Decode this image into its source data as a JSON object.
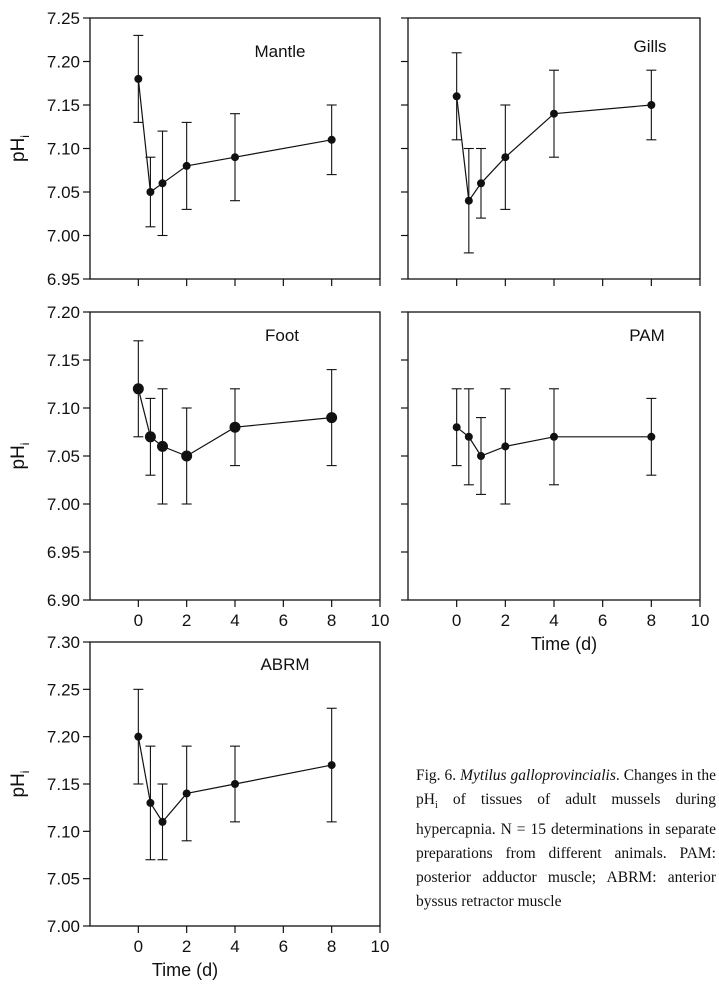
{
  "chart_data": [
    {
      "type": "errorbar-line",
      "title": "Mantle",
      "ylabel": "pH",
      "ylabel_subscript": "i",
      "x": [
        0,
        0.5,
        1,
        2,
        4,
        8
      ],
      "values": [
        7.18,
        7.05,
        7.06,
        7.08,
        7.09,
        7.11
      ],
      "errors": [
        0.05,
        0.04,
        0.06,
        0.05,
        0.05,
        0.04
      ],
      "color": "#111111",
      "xlim": [
        -2,
        10
      ],
      "xticks": [
        0,
        2,
        4,
        6,
        8,
        10
      ],
      "show_xtick_labels": false,
      "ylim": [
        6.95,
        7.25
      ],
      "yticks": [
        6.95,
        {
          "value": 7,
          "label": "7.00"
        },
        7.05,
        {
          "value": 7.1,
          "label": "7.10"
        },
        7.15,
        {
          "value": 7.2,
          "label": "7.20"
        },
        7.25
      ],
      "show_ytick_labels": true
    },
    {
      "type": "errorbar-line",
      "title": "Gills",
      "x": [
        0,
        0.5,
        1,
        2,
        4,
        8
      ],
      "values": [
        7.16,
        7.04,
        7.06,
        7.09,
        7.14,
        7.15
      ],
      "errors": [
        0.05,
        0.06,
        0.04,
        0.06,
        0.05,
        0.04
      ],
      "color": "#111111",
      "xlim": [
        -2,
        10
      ],
      "xticks": [
        0,
        2,
        4,
        6,
        8,
        10
      ],
      "show_xtick_labels": false,
      "ylim": [
        6.95,
        7.25
      ],
      "yticks": [
        6.95,
        7,
        7.05,
        7.1,
        7.15,
        7.2,
        7.25
      ],
      "show_ytick_labels": false
    },
    {
      "type": "errorbar-line",
      "title": "Foot",
      "ylabel": "pH",
      "ylabel_subscript": "i",
      "x": [
        0,
        0.5,
        1,
        2,
        4,
        8
      ],
      "values": [
        7.12,
        7.07,
        7.06,
        7.05,
        7.08,
        7.09
      ],
      "errors": [
        0.05,
        0.04,
        0.06,
        0.05,
        0.04,
        0.05
      ],
      "color": "#111111",
      "xlim": [
        -2,
        10
      ],
      "xticks": [
        0,
        2,
        4,
        6,
        8,
        10
      ],
      "show_xtick_labels": true,
      "ylim": [
        6.9,
        7.2
      ],
      "yticks": [
        {
          "value": 6.9,
          "label": "6.90"
        },
        6.95,
        {
          "value": 7,
          "label": "7.00"
        },
        7.05,
        {
          "value": 7.1,
          "label": "7.10"
        },
        7.15,
        {
          "value": 7.2,
          "label": "7.20"
        }
      ],
      "show_ytick_labels": true
    },
    {
      "type": "errorbar-line",
      "title": "PAM",
      "xlabel": "Time (d)",
      "x": [
        0,
        0.5,
        1,
        2,
        4,
        8
      ],
      "values": [
        7.08,
        7.07,
        7.05,
        7.06,
        7.07,
        7.07
      ],
      "errors": [
        0.04,
        0.05,
        0.04,
        0.06,
        0.05,
        0.04
      ],
      "color": "#111111",
      "xlim": [
        -2,
        10
      ],
      "xticks": [
        0,
        2,
        4,
        6,
        8,
        10
      ],
      "show_xtick_labels": true,
      "ylim": [
        6.9,
        7.2
      ],
      "yticks": [
        6.9,
        6.95,
        7,
        7.05,
        7.1,
        7.15,
        7.2
      ],
      "show_ytick_labels": false
    },
    {
      "type": "errorbar-line",
      "title": "ABRM",
      "xlabel": "Time (d)",
      "ylabel": "pH",
      "ylabel_subscript": "i",
      "x": [
        0,
        0.5,
        1,
        2,
        4,
        8
      ],
      "values": [
        7.2,
        7.13,
        7.11,
        7.14,
        7.15,
        7.17
      ],
      "errors": [
        0.05,
        0.06,
        0.04,
        0.05,
        0.04,
        0.06
      ],
      "color": "#111111",
      "xlim": [
        -2,
        10
      ],
      "xticks": [
        0,
        2,
        4,
        6,
        8,
        10
      ],
      "show_xtick_labels": true,
      "ylim": [
        7,
        7.3
      ],
      "yticks": [
        {
          "value": 7,
          "label": "7.00"
        },
        7.05,
        {
          "value": 7.1,
          "label": "7.10"
        },
        7.15,
        {
          "value": 7.2,
          "label": "7.20"
        },
        7.25,
        {
          "value": 7.3,
          "label": "7.30"
        }
      ],
      "show_ytick_labels": true
    }
  ],
  "caption": {
    "label": "Fig. 6.",
    "species": "Mytilus galloprovincialis",
    "text_before": ". Changes in the pH",
    "subscript": "i",
    "text_after": " of tissues of adult mussels during hypercapnia. N = 15 determinations in separate preparations from different animals. PAM: posterior adductor muscle; ABRM: anterior byssus retractor muscle"
  }
}
